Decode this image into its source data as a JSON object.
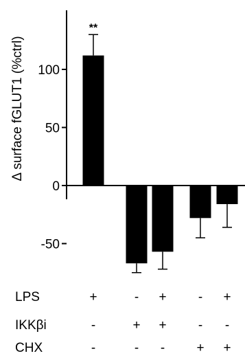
{
  "chart_data": {
    "type": "bar",
    "ylabel": "Δ surface fGLUT1 (%ctrl)",
    "yticks": [
      -50,
      0,
      50,
      100
    ],
    "ylim": [
      -80,
      150
    ],
    "grid": false,
    "bar_color": "#000000",
    "values": [
      112,
      -67,
      -57,
      -28,
      -16
    ],
    "errors": [
      18,
      8,
      15,
      17,
      20
    ],
    "annotations": [
      "**",
      "",
      "",
      "",
      ""
    ],
    "treatments": [
      {
        "name": "LPS",
        "marks": [
          "+",
          "-",
          "+",
          "-",
          "+"
        ]
      },
      {
        "name": "IKKβi",
        "marks": [
          "-",
          "+",
          "+",
          "-",
          "-"
        ]
      },
      {
        "name": "CHX",
        "marks": [
          "-",
          "-",
          "-",
          "+",
          "+"
        ]
      }
    ]
  }
}
